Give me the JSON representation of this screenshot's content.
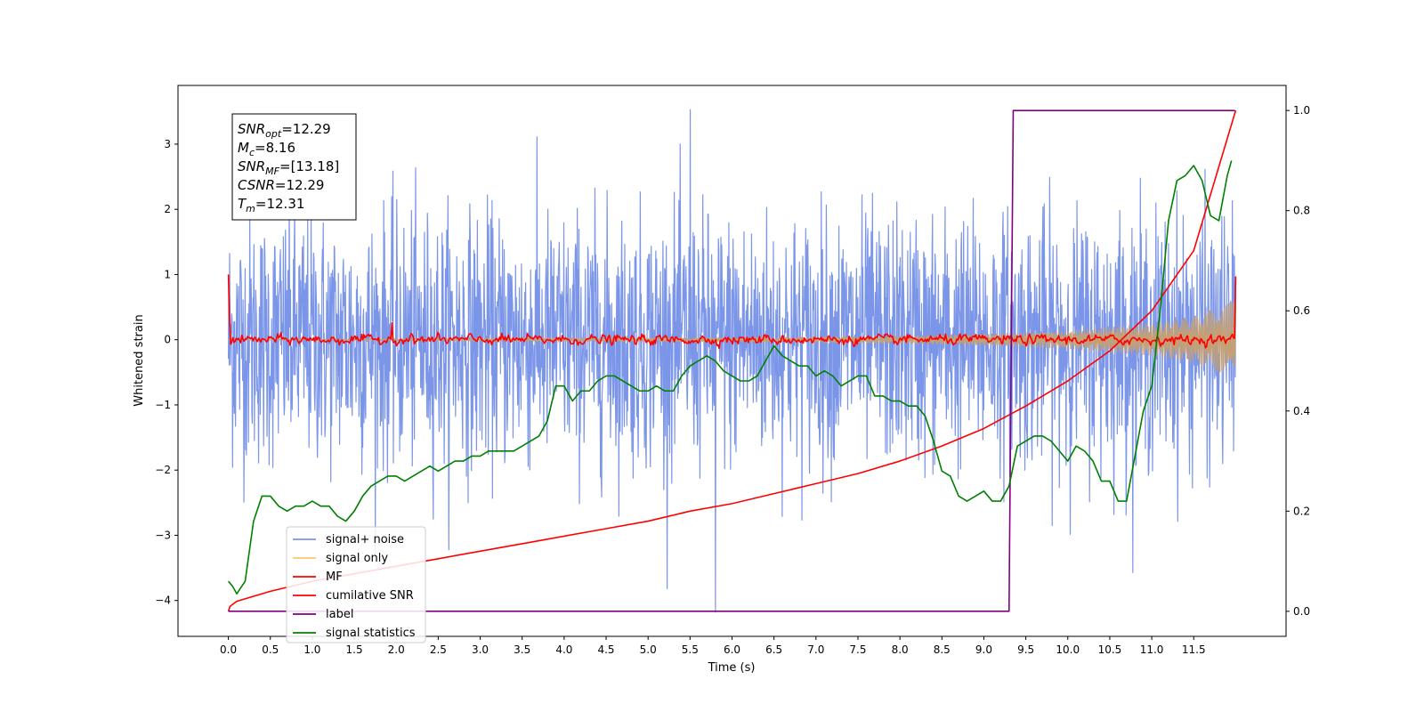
{
  "chart_data": {
    "type": "line",
    "xlabel": "Time (s)",
    "ylabel": "Whitened strain",
    "xlim": [
      -0.6,
      12.6
    ],
    "ylim": [
      -4.55,
      3.9
    ],
    "ylim_right": [
      -0.05,
      1.05
    ],
    "x_ticks": [
      "0.0",
      "0.5",
      "1.0",
      "1.5",
      "2.0",
      "2.5",
      "3.0",
      "3.5",
      "4.0",
      "4.5",
      "5.0",
      "5.5",
      "6.0",
      "6.5",
      "7.0",
      "7.5",
      "8.0",
      "8.5",
      "9.0",
      "9.5",
      "10.0",
      "10.5",
      "11.0",
      "11.5"
    ],
    "y_ticks_left": [
      "3",
      "2",
      "1",
      "0",
      "−1",
      "−2",
      "−3",
      "−4"
    ],
    "y_ticks_right": [
      "1.0",
      "0.8",
      "0.6",
      "0.4",
      "0.2",
      "0.0"
    ],
    "annotation_lines": [
      {
        "var": "SNR",
        "sub": "opt",
        "rest": "=12.29"
      },
      {
        "var": "M",
        "sub": "c",
        "rest": "=8.16"
      },
      {
        "var": "SNR",
        "sub": "MF",
        "rest": "=[13.18]"
      },
      {
        "var": "CSNR",
        "sub": "",
        "rest": "=12.29"
      },
      {
        "var": "T",
        "sub": "m",
        "rest": "=12.31"
      }
    ],
    "legend_position": "lower-left",
    "legend": [
      {
        "label": "signal+ noise",
        "color": "#7b95e8"
      },
      {
        "label": "signal only",
        "color": "#f7c770"
      },
      {
        "label": "MF",
        "color": "#ff0000"
      },
      {
        "label": "cumilative SNR",
        "color": "#ff0000"
      },
      {
        "label": "label",
        "color": "#800080"
      },
      {
        "label": "signal statistics",
        "color": "#008000"
      }
    ],
    "series": [
      {
        "name": "signal+ noise",
        "axis": "left",
        "color": "#7b95e8",
        "x_range": [
          0.0,
          12.0
        ],
        "mean": 0.0,
        "std": 0.95,
        "min": -4.18,
        "max": 3.53
      },
      {
        "name": "signal only",
        "axis": "left",
        "color": "#c4a077",
        "x_range": [
          0.0,
          12.0
        ],
        "envelope_x": [
          0,
          4,
          6,
          8,
          9,
          10,
          11,
          11.5,
          12
        ],
        "envelope_amp": [
          0.0,
          0.02,
          0.03,
          0.06,
          0.09,
          0.14,
          0.25,
          0.36,
          0.6
        ]
      },
      {
        "name": "MF",
        "axis": "left",
        "color": "#ff0000",
        "x_range": [
          0.0,
          12.0
        ],
        "start": 1.0,
        "end": 0.97,
        "noise_std": 0.06
      },
      {
        "name": "cumilative SNR",
        "axis": "right",
        "color": "#ff0000",
        "x": [
          0.0,
          0.02,
          0.1,
          0.3,
          0.5,
          1.0,
          1.5,
          2.0,
          2.5,
          3.0,
          3.5,
          4.0,
          4.5,
          5.0,
          5.5,
          6.0,
          6.5,
          7.0,
          7.5,
          8.0,
          8.5,
          9.0,
          9.5,
          10.0,
          10.5,
          11.0,
          11.5,
          12.0
        ],
        "y": [
          0.0,
          0.01,
          0.02,
          0.03,
          0.04,
          0.06,
          0.075,
          0.09,
          0.105,
          0.12,
          0.135,
          0.15,
          0.165,
          0.18,
          0.2,
          0.215,
          0.235,
          0.255,
          0.275,
          0.3,
          0.33,
          0.365,
          0.41,
          0.46,
          0.52,
          0.6,
          0.72,
          1.0
        ]
      },
      {
        "name": "label",
        "axis": "right",
        "color": "#800080",
        "x": [
          0.0,
          9.3,
          9.35,
          11.99
        ],
        "y": [
          0.0,
          0.0,
          1.0,
          1.0
        ]
      },
      {
        "name": "signal statistics",
        "axis": "right",
        "color": "#008000",
        "x": [
          0.0,
          0.05,
          0.1,
          0.2,
          0.3,
          0.4,
          0.5,
          0.6,
          0.7,
          0.8,
          0.9,
          1.0,
          1.1,
          1.2,
          1.3,
          1.4,
          1.5,
          1.6,
          1.7,
          1.8,
          1.9,
          2.0,
          2.1,
          2.2,
          2.3,
          2.4,
          2.5,
          2.6,
          2.7,
          2.8,
          2.9,
          3.0,
          3.1,
          3.2,
          3.3,
          3.4,
          3.5,
          3.6,
          3.7,
          3.8,
          3.9,
          4.0,
          4.1,
          4.2,
          4.3,
          4.4,
          4.5,
          4.6,
          4.7,
          4.8,
          4.9,
          5.0,
          5.1,
          5.2,
          5.3,
          5.4,
          5.5,
          5.6,
          5.7,
          5.8,
          5.9,
          6.0,
          6.1,
          6.2,
          6.3,
          6.4,
          6.5,
          6.6,
          6.7,
          6.8,
          6.9,
          7.0,
          7.1,
          7.2,
          7.3,
          7.4,
          7.5,
          7.6,
          7.7,
          7.8,
          7.9,
          8.0,
          8.1,
          8.2,
          8.3,
          8.4,
          8.5,
          8.6,
          8.7,
          8.8,
          8.9,
          9.0,
          9.1,
          9.2,
          9.3,
          9.4,
          9.5,
          9.6,
          9.7,
          9.8,
          9.9,
          10.0,
          10.1,
          10.2,
          10.3,
          10.4,
          10.5,
          10.6,
          10.7,
          10.8,
          10.9,
          11.0,
          11.1,
          11.2,
          11.3,
          11.4,
          11.5,
          11.6,
          11.7,
          11.8,
          11.9,
          11.95
        ],
        "y": [
          0.06,
          0.05,
          0.035,
          0.06,
          0.18,
          0.23,
          0.23,
          0.21,
          0.2,
          0.21,
          0.21,
          0.22,
          0.21,
          0.21,
          0.19,
          0.18,
          0.2,
          0.23,
          0.25,
          0.26,
          0.27,
          0.27,
          0.26,
          0.27,
          0.28,
          0.29,
          0.28,
          0.29,
          0.3,
          0.3,
          0.31,
          0.31,
          0.32,
          0.32,
          0.32,
          0.32,
          0.33,
          0.34,
          0.35,
          0.38,
          0.45,
          0.45,
          0.42,
          0.44,
          0.44,
          0.46,
          0.47,
          0.47,
          0.46,
          0.45,
          0.44,
          0.44,
          0.45,
          0.44,
          0.44,
          0.47,
          0.49,
          0.5,
          0.51,
          0.5,
          0.48,
          0.47,
          0.46,
          0.46,
          0.47,
          0.5,
          0.53,
          0.51,
          0.5,
          0.49,
          0.49,
          0.47,
          0.48,
          0.47,
          0.45,
          0.46,
          0.47,
          0.47,
          0.43,
          0.43,
          0.42,
          0.42,
          0.41,
          0.41,
          0.39,
          0.34,
          0.28,
          0.27,
          0.23,
          0.22,
          0.23,
          0.24,
          0.22,
          0.22,
          0.25,
          0.33,
          0.34,
          0.35,
          0.35,
          0.34,
          0.32,
          0.3,
          0.33,
          0.32,
          0.3,
          0.26,
          0.26,
          0.22,
          0.22,
          0.31,
          0.4,
          0.45,
          0.6,
          0.78,
          0.86,
          0.87,
          0.89,
          0.86,
          0.79,
          0.78,
          0.87,
          0.9
        ]
      }
    ]
  }
}
